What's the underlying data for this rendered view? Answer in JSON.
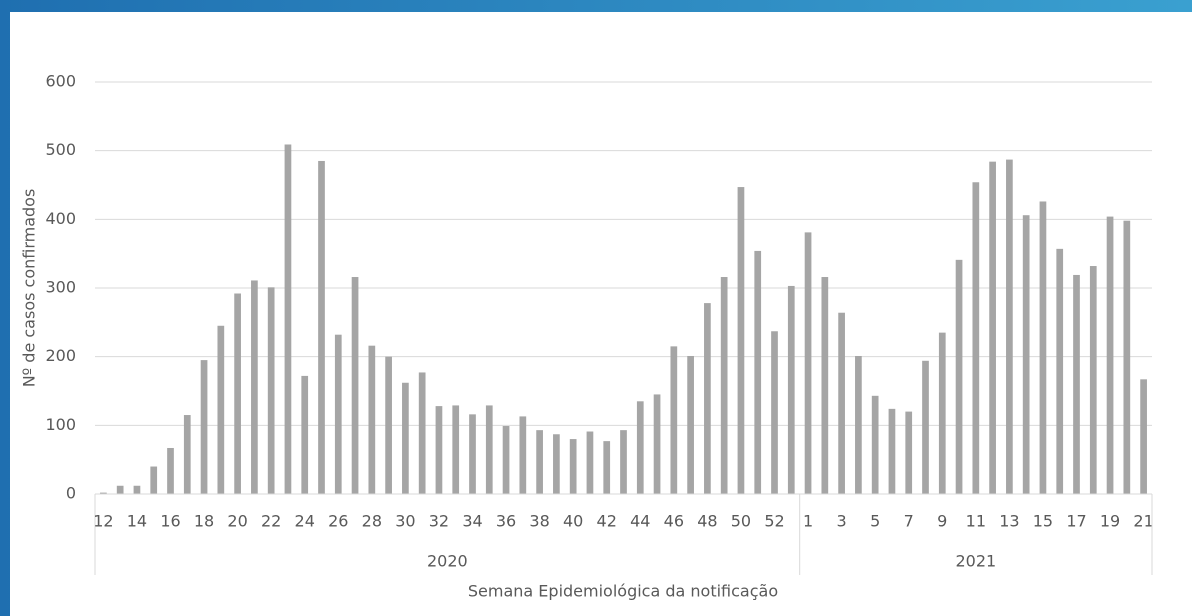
{
  "chart_data": {
    "type": "bar",
    "color": "#a5a5a5",
    "y_label": "Nº de casos confirmados",
    "x_label": "Semana Epidemiológica da notificação",
    "ylim": [
      0,
      600
    ],
    "yticks": [
      0,
      100,
      200,
      300,
      400,
      500,
      600
    ],
    "grid": true,
    "groups": [
      {
        "name": "2020",
        "categories": [
          "12",
          null,
          "14",
          null,
          "16",
          null,
          "18",
          null,
          "20",
          null,
          "22",
          null,
          "24",
          null,
          "26",
          null,
          "28",
          null,
          "30",
          null,
          "32",
          null,
          "34",
          null,
          "36",
          null,
          "38",
          null,
          "40",
          null,
          "42",
          null,
          "44",
          null,
          "46",
          null,
          "48",
          null,
          "50",
          null,
          "52",
          null
        ],
        "values": [
          2,
          12,
          12,
          40,
          67,
          115,
          195,
          245,
          292,
          311,
          301,
          509,
          172,
          485,
          232,
          316,
          216,
          200,
          162,
          177,
          128,
          129,
          116,
          129,
          99,
          113,
          93,
          87,
          80,
          91,
          77,
          93,
          135,
          145,
          215,
          201,
          278,
          316,
          447,
          354,
          237,
          303
        ]
      },
      {
        "name": "2021",
        "categories": [
          "1",
          null,
          "3",
          null,
          "5",
          null,
          "7",
          null,
          "9",
          null,
          "11",
          null,
          "13",
          null,
          "15",
          null,
          "17",
          null,
          "19",
          null,
          "21"
        ],
        "values": [
          381,
          316,
          264,
          201,
          143,
          124,
          120,
          194,
          235,
          341,
          454,
          484,
          487,
          406,
          426,
          357,
          319,
          332,
          404,
          398,
          167
        ]
      }
    ]
  }
}
